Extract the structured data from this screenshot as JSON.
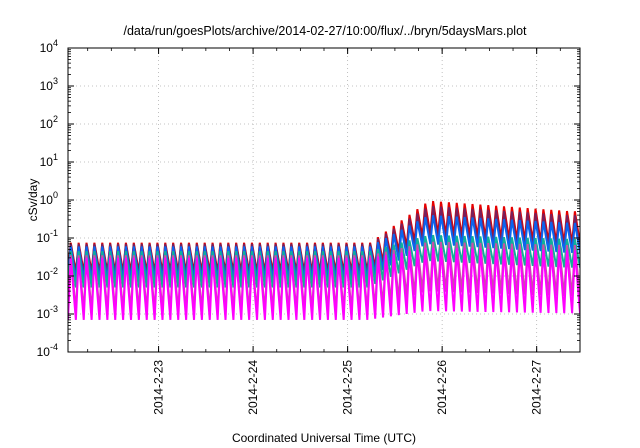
{
  "chart_data": {
    "type": "line",
    "title": "/data/run/goesPlots/archive/2014-02-27/10:00/flux/../bryn/5daysMars.plot",
    "xlabel": "Coordinated Universal Time (UTC)",
    "ylabel": "cSv/day",
    "x_range": [
      "2014-02-22T01:00",
      "2014-02-27T11:00"
    ],
    "x_ticks": [
      {
        "t": "2014-02-23T00:00",
        "label": "2014-2-23"
      },
      {
        "t": "2014-02-24T00:00",
        "label": "2014-2-24"
      },
      {
        "t": "2014-02-25T00:00",
        "label": "2014-2-25"
      },
      {
        "t": "2014-02-26T00:00",
        "label": "2014-2-26"
      },
      {
        "t": "2014-02-27T00:00",
        "label": "2014-2-27"
      }
    ],
    "y_scale": "log",
    "ylim": [
      0.0001,
      10000
    ],
    "y_ticks": [
      {
        "base": "10",
        "exp": "4"
      },
      {
        "base": "10",
        "exp": "3"
      },
      {
        "base": "10",
        "exp": "2"
      },
      {
        "base": "10",
        "exp": "1"
      },
      {
        "base": "10",
        "exp": "0"
      },
      {
        "base": "10",
        "exp": "-1"
      },
      {
        "base": "10",
        "exp": "-2"
      },
      {
        "base": "10",
        "exp": "-3"
      },
      {
        "base": "10",
        "exp": "-4"
      }
    ],
    "grid": true,
    "colors": [
      "#e60000",
      "#7a1f5a",
      "#0a64f0",
      "#10b09a",
      "#c84fa8",
      "#ff00ff"
    ],
    "series": [
      {
        "color": "#e60000",
        "base_peak": 0.075,
        "base_trough": 0.013,
        "storm_peak": 0.95,
        "storm_trough": 0.13
      },
      {
        "color": "#7a1f5a",
        "base_peak": 0.07,
        "base_trough": 0.011,
        "storm_peak": 0.7,
        "storm_trough": 0.09
      },
      {
        "color": "#0a64f0",
        "base_peak": 0.06,
        "base_trough": 0.008,
        "storm_peak": 0.4,
        "storm_trough": 0.07
      },
      {
        "color": "#10b09a",
        "base_peak": 0.045,
        "base_trough": 0.005,
        "storm_peak": 0.12,
        "storm_trough": 0.025
      },
      {
        "color": "#c84fa8",
        "base_peak": 0.035,
        "base_trough": 0.0012,
        "storm_peak": 0.08,
        "storm_trough": 0.004
      },
      {
        "color": "#ff00ff",
        "base_peak": 0.03,
        "base_trough": 0.0007,
        "storm_peak": 0.055,
        "storm_trough": 0.0012
      }
    ]
  }
}
